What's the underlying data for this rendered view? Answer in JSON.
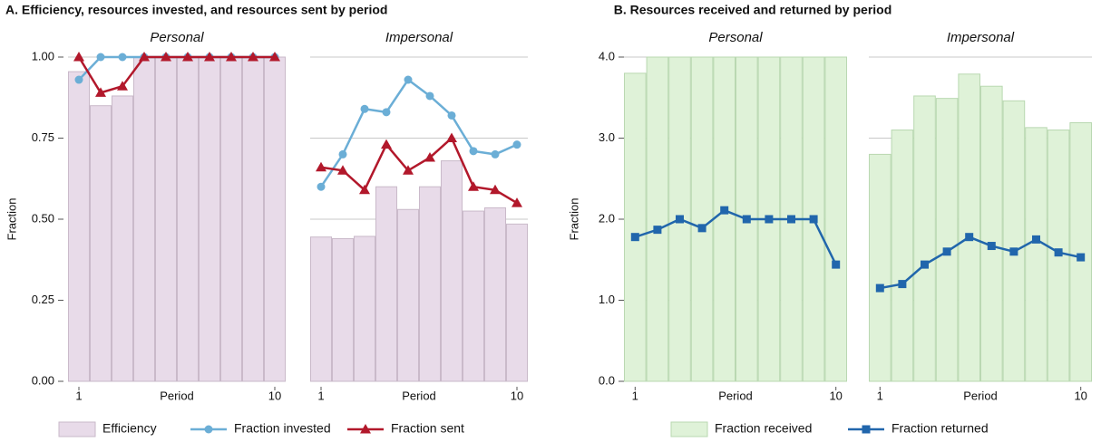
{
  "chart_data": [
    {
      "type": "bar-line",
      "title": "A. Efficiency, resources invested, and resources sent by period",
      "ylabel": "Fraction",
      "ylim": [
        0,
        1
      ],
      "yticks": [
        {
          "value": 0,
          "label": "0.00"
        },
        {
          "value": 0.25,
          "label": "0.25"
        },
        {
          "value": 0.5,
          "label": "0.50"
        },
        {
          "value": 0.75,
          "label": "0.75"
        },
        {
          "value": 1,
          "label": "1.00"
        }
      ],
      "grid": true,
      "series": [
        {
          "name": "Efficiency",
          "type": "bar",
          "color": "#e8dbe9",
          "stroke": "#c9b9c9"
        },
        {
          "name": "Fraction invested",
          "type": "line",
          "marker": "circle",
          "color": "#6baed6"
        },
        {
          "name": "Fraction sent",
          "type": "line",
          "marker": "triangle",
          "color": "#b2182b"
        }
      ],
      "panels": [
        {
          "subtitle": "Personal",
          "xlabel": "Period",
          "x": [
            1,
            2,
            3,
            4,
            5,
            6,
            7,
            8,
            9,
            10
          ],
          "xlim": [
            0.5,
            10.5
          ],
          "xticks": [
            1,
            10
          ],
          "series": [
            {
              "values": [
                0.955,
                0.85,
                0.88,
                1,
                1,
                1,
                1,
                1,
                1,
                1
              ]
            },
            {
              "values": [
                0.93,
                1,
                1,
                1,
                1,
                1,
                1,
                1,
                1,
                1
              ]
            },
            {
              "values": [
                1,
                0.89,
                0.91,
                1,
                1,
                1,
                1,
                1,
                1,
                1
              ]
            }
          ]
        },
        {
          "subtitle": "Impersonal",
          "xlabel": "Period",
          "x": [
            1,
            2,
            3,
            4,
            5,
            6,
            7,
            8,
            9,
            10
          ],
          "xlim": [
            0.5,
            10.5
          ],
          "xticks": [
            1,
            10
          ],
          "series": [
            {
              "values": [
                0.445,
                0.44,
                0.447,
                0.6,
                0.53,
                0.6,
                0.68,
                0.525,
                0.535,
                0.485
              ]
            },
            {
              "values": [
                0.6,
                0.7,
                0.84,
                0.83,
                0.93,
                0.88,
                0.82,
                0.71,
                0.7,
                0.73
              ]
            },
            {
              "values": [
                0.66,
                0.65,
                0.59,
                0.73,
                0.65,
                0.69,
                0.75,
                0.6,
                0.59,
                0.55
              ]
            }
          ]
        }
      ]
    },
    {
      "type": "bar-line",
      "title": "B. Resources received and returned by period",
      "ylabel": "Fraction",
      "ylim": [
        0,
        4
      ],
      "yticks": [
        {
          "value": 0,
          "label": "0.0"
        },
        {
          "value": 1,
          "label": "1.0"
        },
        {
          "value": 2,
          "label": "2.0"
        },
        {
          "value": 3,
          "label": "3.0"
        },
        {
          "value": 4,
          "label": "4.0"
        }
      ],
      "grid": true,
      "series": [
        {
          "name": "Fraction received",
          "type": "bar",
          "color": "#dff2d8",
          "stroke": "#b9d8b1"
        },
        {
          "name": "Fraction returned",
          "type": "line",
          "marker": "square",
          "color": "#2166ac"
        }
      ],
      "panels": [
        {
          "subtitle": "Personal",
          "xlabel": "Period",
          "x": [
            1,
            2,
            3,
            4,
            5,
            6,
            7,
            8,
            9,
            10
          ],
          "xlim": [
            0.5,
            10.5
          ],
          "xticks": [
            1,
            10
          ],
          "series": [
            {
              "values": [
                3.8,
                4,
                4,
                4,
                4,
                4,
                4,
                4,
                4,
                4
              ]
            },
            {
              "values": [
                1.78,
                1.87,
                2.0,
                1.89,
                2.11,
                2.0,
                2.0,
                2.0,
                2.0,
                1.44
              ]
            }
          ]
        },
        {
          "subtitle": "Impersonal",
          "xlabel": "Period",
          "x": [
            1,
            2,
            3,
            4,
            5,
            6,
            7,
            8,
            9,
            10
          ],
          "xlim": [
            0.5,
            10.5
          ],
          "xticks": [
            1,
            10
          ],
          "series": [
            {
              "values": [
                2.8,
                3.1,
                3.52,
                3.49,
                3.79,
                3.64,
                3.46,
                3.13,
                3.1,
                3.19
              ]
            },
            {
              "values": [
                1.15,
                1.2,
                1.44,
                1.6,
                1.78,
                1.67,
                1.6,
                1.75,
                1.59,
                1.53
              ]
            }
          ]
        }
      ]
    }
  ]
}
